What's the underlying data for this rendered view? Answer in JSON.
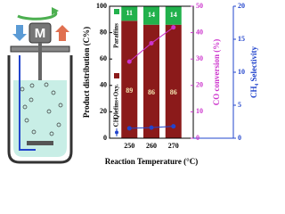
{
  "diagram": {
    "motor_label": "M"
  },
  "chart_data": {
    "type": "bar",
    "xlabel": "Reaction Temperature (°C)",
    "ylabel": "Product distribution (C%)",
    "y2label": "CO conversion (%)",
    "y3label": "CH₄ Selectivity",
    "categories": [
      "250",
      "260",
      "270"
    ],
    "series": [
      {
        "name": "Olefins+Oxy.",
        "color": "#8b1a1a",
        "values": [
          89,
          86,
          86
        ]
      },
      {
        "name": "Paraffins",
        "color": "#22b14c",
        "values": [
          11,
          14,
          14
        ]
      }
    ],
    "lines": [
      {
        "axis": "y2",
        "color": "#cc33cc",
        "values": [
          29,
          36,
          42
        ]
      },
      {
        "name": "CH₄",
        "axis": "y3",
        "color": "#2244cc",
        "values": [
          1.5,
          1.6,
          1.8
        ]
      }
    ],
    "ylim": [
      0,
      100
    ],
    "yticks": [
      0,
      20,
      40,
      60,
      80,
      100
    ],
    "y2lim": [
      0,
      50
    ],
    "y2ticks": [
      0,
      10,
      20,
      30,
      40,
      50
    ],
    "y3lim": [
      0,
      20
    ],
    "y3ticks": [
      0,
      5,
      10,
      15,
      20
    ]
  }
}
